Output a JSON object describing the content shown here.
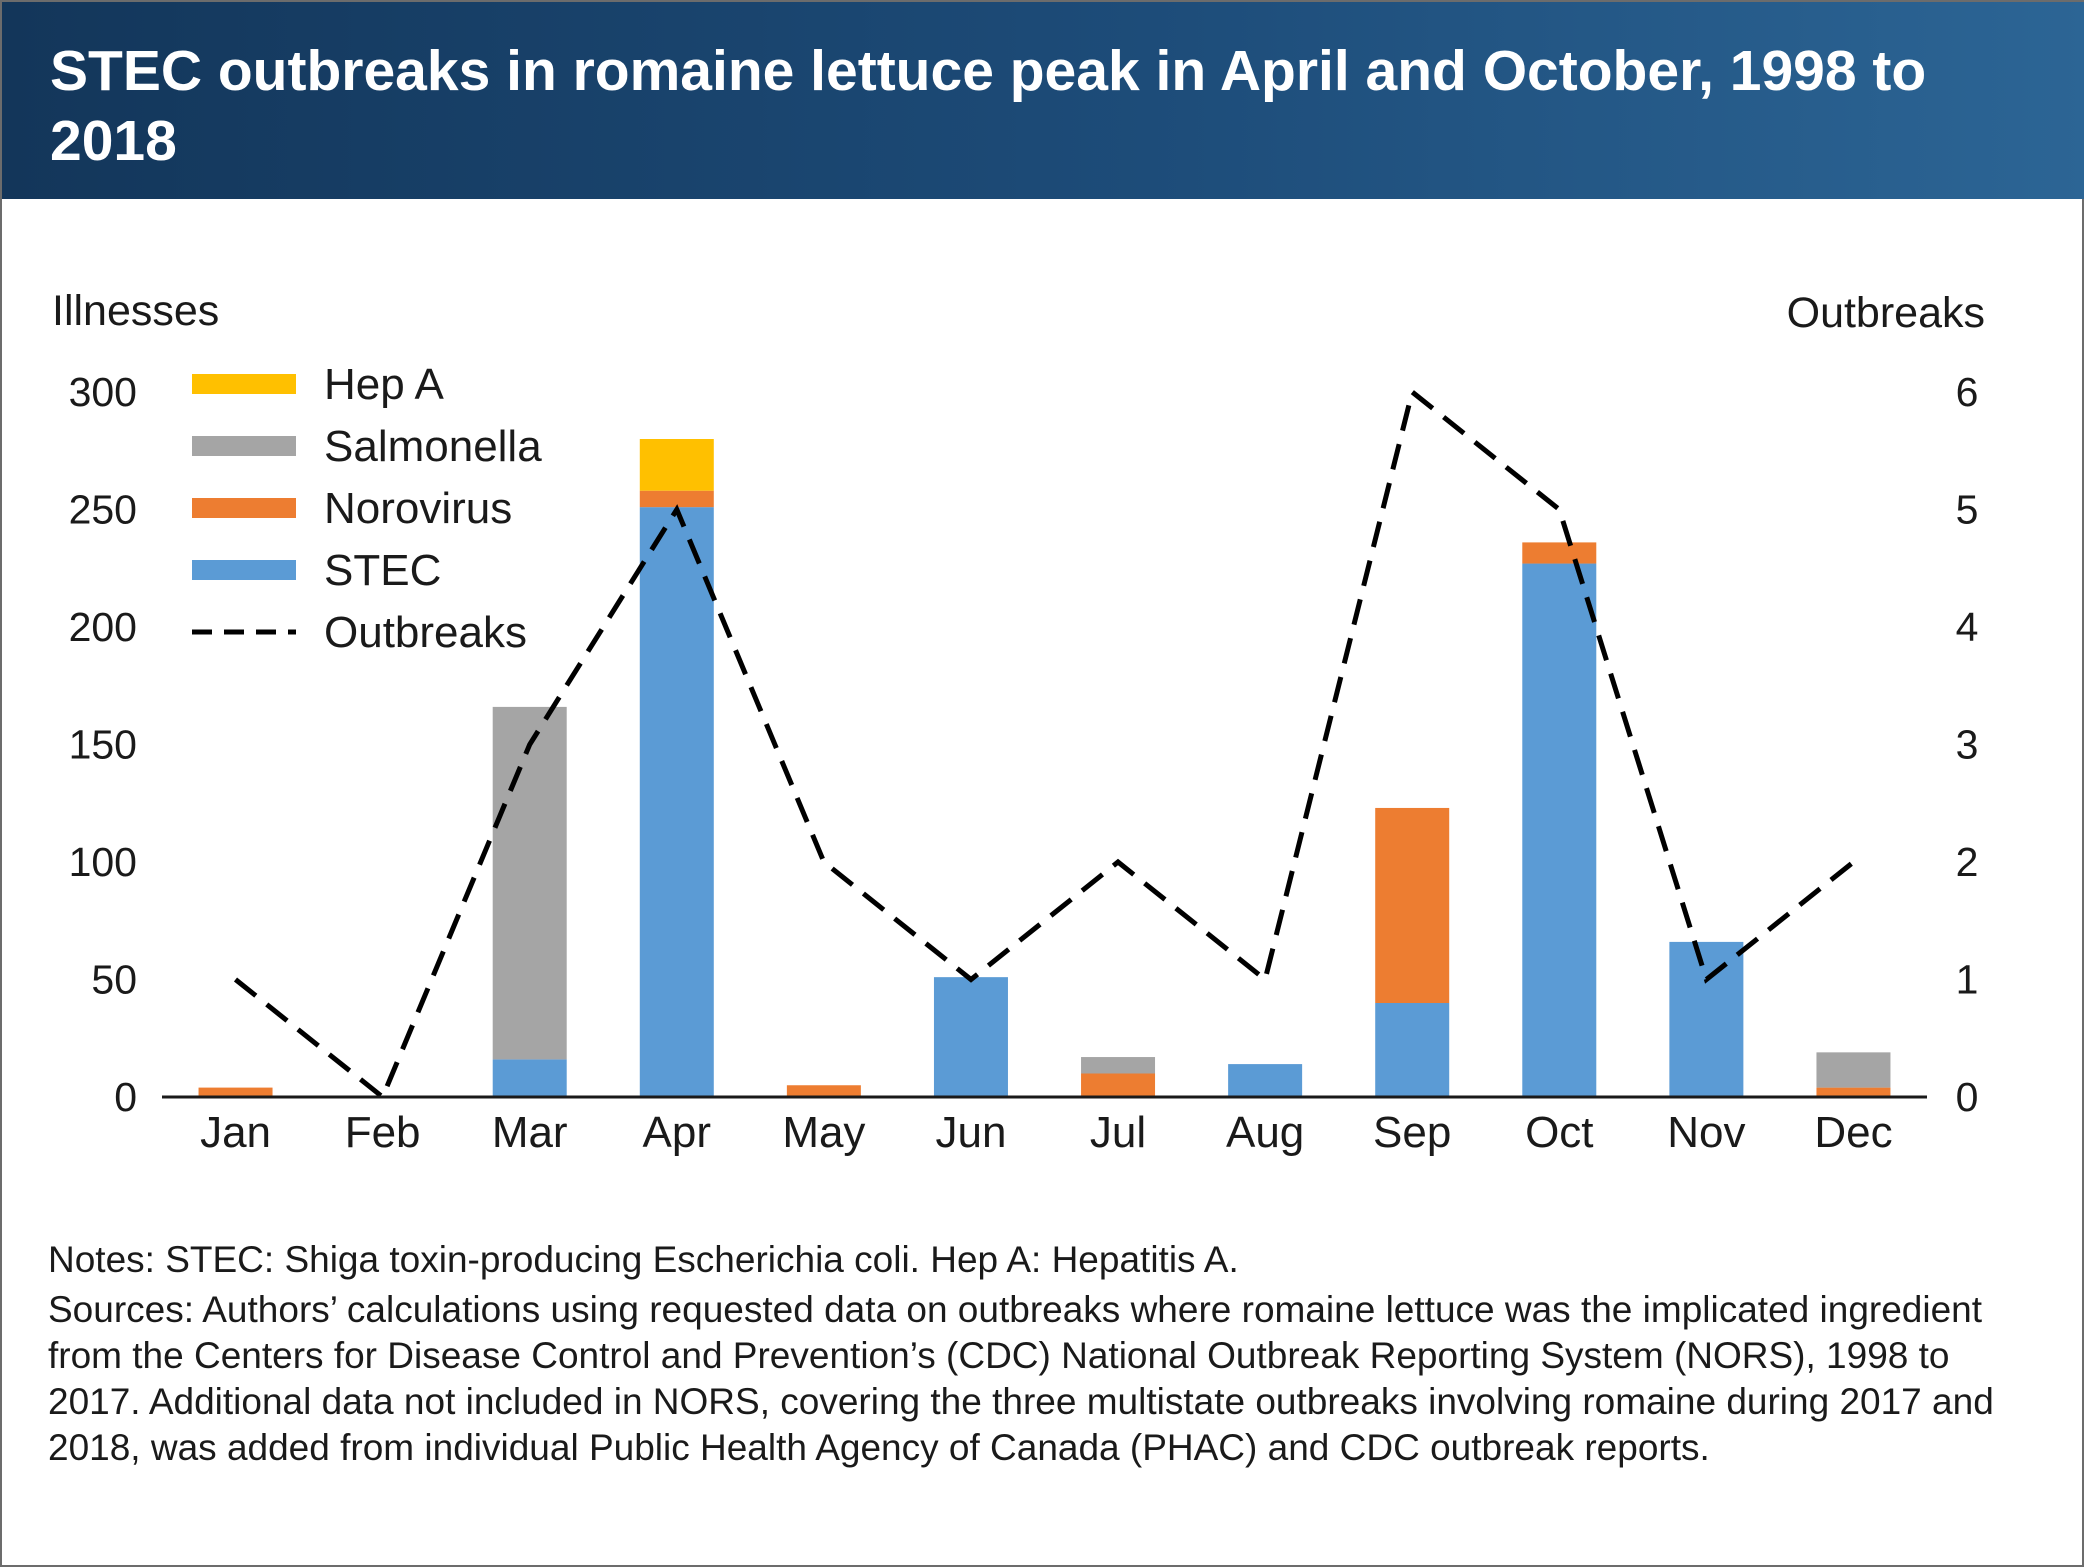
{
  "title": "STEC outbreaks in romaine lettuce peak in April and October, 1998 to 2018",
  "notes": "Notes: STEC: Shiga toxin-producing Escherichia coli. Hep A: Hepatitis A.",
  "sources": "Sources: Authors’ calculations using requested data on outbreaks where romaine lettuce was the implicated ingredient from the Centers for Disease Control and Prevention’s (CDC) National Outbreak Reporting System (NORS), 1998 to 2017. Additional data not included in NORS, covering the three multistate outbreaks involving romaine during 2017 and 2018, was added from individual Public Health Agency of Canada (PHAC) and CDC outbreak reports.",
  "chart_data": {
    "type": "bar",
    "stacked": true,
    "categories": [
      "Jan",
      "Feb",
      "Mar",
      "Apr",
      "May",
      "Jun",
      "Jul",
      "Aug",
      "Sep",
      "Oct",
      "Nov",
      "Dec"
    ],
    "ylabel": "Illnesses",
    "y2label": "Outbreaks",
    "ylim": [
      0,
      300
    ],
    "y2lim": [
      0,
      6
    ],
    "yticks": [
      "0",
      "50",
      "100",
      "150",
      "200",
      "250",
      "300"
    ],
    "y2ticks": [
      "0",
      "1",
      "2",
      "3",
      "4",
      "5",
      "6"
    ],
    "grid": false,
    "legend_position": "top-left",
    "series": [
      {
        "name": "STEC",
        "color": "#5b9bd5",
        "values": [
          0,
          0,
          16,
          251,
          0,
          51,
          0,
          14,
          40,
          227,
          66,
          0
        ]
      },
      {
        "name": "Norovirus",
        "color": "#ed7d31",
        "values": [
          4,
          0,
          0,
          7,
          5,
          0,
          10,
          0,
          83,
          9,
          0,
          4
        ]
      },
      {
        "name": "Salmonella",
        "color": "#a5a5a5",
        "values": [
          0,
          0,
          150,
          0,
          0,
          0,
          7,
          0,
          0,
          0,
          0,
          15
        ]
      },
      {
        "name": "Hep A",
        "color": "#ffc000",
        "values": [
          0,
          0,
          0,
          22,
          0,
          0,
          0,
          0,
          0,
          0,
          0,
          0
        ]
      }
    ],
    "line_series": {
      "name": "Outbreaks",
      "axis": "right",
      "style": "dashed",
      "color": "#000000",
      "values": [
        1,
        0,
        3,
        5,
        2,
        1,
        2,
        1,
        6,
        5,
        1,
        2
      ]
    },
    "legend_order": [
      "Hep A",
      "Salmonella",
      "Norovirus",
      "STEC",
      "Outbreaks"
    ]
  }
}
